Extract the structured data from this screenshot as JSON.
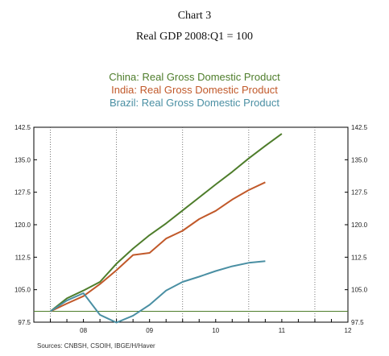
{
  "chart_data": {
    "type": "line",
    "title": "Chart 3",
    "subtitle": "Real GDP 2008:Q1 = 100",
    "source": "Sources:  CNBSH, CSOIH, IBGE/H/Haver",
    "ylim": [
      97.5,
      142.5
    ],
    "yticks": [
      "142.5",
      "135.0",
      "127.5",
      "120.0",
      "112.5",
      "105.0",
      "97.5"
    ],
    "xticks": [
      "08",
      "09",
      "10",
      "11",
      "12"
    ],
    "reference_line": 100,
    "series": [
      {
        "name": "China: Real Gross Domestic Product",
        "color": "#4e7d2b",
        "x": [
          2008.0,
          2008.25,
          2008.5,
          2008.75,
          2009.0,
          2009.25,
          2009.5,
          2009.75,
          2010.0,
          2010.25,
          2010.5,
          2010.75,
          2011.0,
          2011.25,
          2011.5
        ],
        "values": [
          100.0,
          103.0,
          104.8,
          106.8,
          111.0,
          114.5,
          117.6,
          120.3,
          123.3,
          126.3,
          129.3,
          132.2,
          135.3,
          138.2,
          141.0
        ]
      },
      {
        "name": "India: Real Gross Domestic Product",
        "color": "#c1592a",
        "x": [
          2008.0,
          2008.25,
          2008.5,
          2008.75,
          2009.0,
          2009.25,
          2009.5,
          2009.75,
          2010.0,
          2010.25,
          2010.5,
          2010.75,
          2011.0,
          2011.25
        ],
        "values": [
          100.0,
          101.8,
          103.5,
          106.3,
          109.5,
          113.0,
          113.5,
          116.8,
          118.6,
          121.3,
          123.2,
          125.8,
          128.0,
          129.8
        ]
      },
      {
        "name": "Brazil: Real Gross Domestic Product",
        "color": "#4a8fa3",
        "x": [
          2008.0,
          2008.25,
          2008.5,
          2008.75,
          2009.0,
          2009.25,
          2009.5,
          2009.75,
          2010.0,
          2010.25,
          2010.5,
          2010.75,
          2011.0,
          2011.25
        ],
        "values": [
          100.0,
          102.5,
          104.2,
          99.2,
          97.4,
          99.0,
          101.5,
          104.8,
          106.8,
          108.0,
          109.3,
          110.4,
          111.2,
          111.6
        ]
      }
    ]
  }
}
